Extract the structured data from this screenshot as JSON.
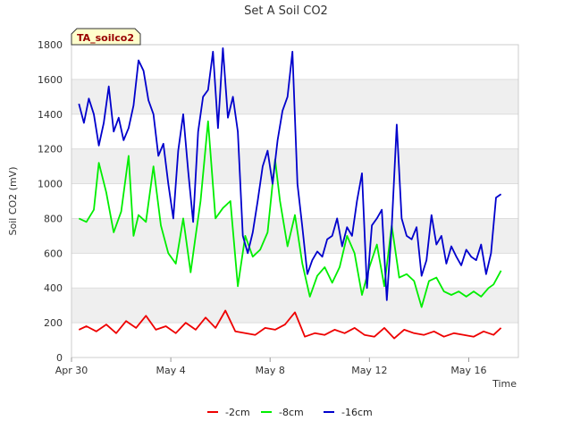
{
  "chart_data": {
    "type": "line",
    "title": "Set A Soil CO2",
    "xlabel": "Time",
    "ylabel": "Soil CO2 (mV)",
    "badge": "TA_soilco2",
    "ylim": [
      0,
      1800
    ],
    "yticks": [
      0,
      200,
      400,
      600,
      800,
      1000,
      1200,
      1400,
      1600,
      1800
    ],
    "xlim": [
      0,
      18
    ],
    "xticks": [
      {
        "value": 0,
        "label": "Apr 30"
      },
      {
        "value": 4,
        "label": "May 4"
      },
      {
        "value": 8,
        "label": "May 8"
      },
      {
        "value": 12,
        "label": "May 12"
      },
      {
        "value": 16,
        "label": "May 16"
      }
    ],
    "colors": {
      "band": "#efefef",
      "grid": "#dddddd",
      "badge_fill": "#ffffcc"
    },
    "series": [
      {
        "name": "-2cm",
        "color": "#ee0000",
        "x": [
          0.3,
          0.6,
          1.0,
          1.4,
          1.8,
          2.2,
          2.6,
          3.0,
          3.4,
          3.8,
          4.2,
          4.6,
          5.0,
          5.4,
          5.8,
          6.2,
          6.6,
          7.0,
          7.4,
          7.8,
          8.2,
          8.6,
          9.0,
          9.4,
          9.8,
          10.2,
          10.6,
          11.0,
          11.4,
          11.8,
          12.2,
          12.6,
          13.0,
          13.4,
          13.8,
          14.2,
          14.6,
          15.0,
          15.4,
          15.8,
          16.2,
          16.6,
          17.0,
          17.3
        ],
        "y": [
          160,
          180,
          150,
          190,
          140,
          210,
          170,
          240,
          160,
          180,
          140,
          200,
          160,
          230,
          170,
          270,
          150,
          140,
          130,
          170,
          160,
          190,
          260,
          120,
          140,
          130,
          160,
          140,
          170,
          130,
          120,
          170,
          110,
          160,
          140,
          130,
          150,
          120,
          140,
          130,
          120,
          150,
          130,
          170
        ]
      },
      {
        "name": "-8cm",
        "color": "#00ee00",
        "x": [
          0.3,
          0.6,
          0.9,
          1.1,
          1.4,
          1.7,
          2.0,
          2.3,
          2.5,
          2.7,
          3.0,
          3.3,
          3.6,
          3.9,
          4.2,
          4.5,
          4.8,
          5.0,
          5.2,
          5.5,
          5.8,
          6.1,
          6.4,
          6.7,
          7.0,
          7.3,
          7.6,
          7.9,
          8.2,
          8.4,
          8.7,
          9.0,
          9.3,
          9.6,
          9.9,
          10.2,
          10.5,
          10.8,
          11.1,
          11.4,
          11.7,
          12.0,
          12.3,
          12.6,
          12.9,
          13.2,
          13.5,
          13.8,
          14.1,
          14.4,
          14.7,
          15.0,
          15.3,
          15.6,
          15.9,
          16.2,
          16.5,
          16.8,
          17.0,
          17.3
        ],
        "y": [
          800,
          780,
          850,
          1120,
          950,
          720,
          840,
          1160,
          700,
          820,
          780,
          1100,
          760,
          600,
          540,
          800,
          490,
          700,
          900,
          1360,
          800,
          860,
          900,
          410,
          700,
          580,
          620,
          720,
          1140,
          900,
          640,
          820,
          540,
          350,
          470,
          520,
          430,
          520,
          700,
          600,
          360,
          520,
          650,
          410,
          760,
          460,
          480,
          440,
          290,
          440,
          460,
          380,
          360,
          380,
          350,
          380,
          350,
          400,
          420,
          500
        ]
      },
      {
        "name": "-16cm",
        "color": "#0000cc",
        "x": [
          0.3,
          0.5,
          0.7,
          0.9,
          1.1,
          1.3,
          1.5,
          1.7,
          1.9,
          2.1,
          2.3,
          2.5,
          2.7,
          2.9,
          3.1,
          3.3,
          3.5,
          3.7,
          3.9,
          4.1,
          4.3,
          4.5,
          4.7,
          4.9,
          5.1,
          5.3,
          5.5,
          5.7,
          5.9,
          6.1,
          6.3,
          6.5,
          6.7,
          6.9,
          7.1,
          7.3,
          7.5,
          7.7,
          7.9,
          8.1,
          8.3,
          8.5,
          8.7,
          8.9,
          9.1,
          9.3,
          9.5,
          9.7,
          9.9,
          10.1,
          10.3,
          10.5,
          10.7,
          10.9,
          11.1,
          11.3,
          11.5,
          11.7,
          11.9,
          12.1,
          12.3,
          12.5,
          12.7,
          12.9,
          13.1,
          13.3,
          13.5,
          13.7,
          13.9,
          14.1,
          14.3,
          14.5,
          14.7,
          14.9,
          15.1,
          15.3,
          15.5,
          15.7,
          15.9,
          16.1,
          16.3,
          16.5,
          16.7,
          16.9,
          17.1,
          17.3
        ],
        "y": [
          1460,
          1350,
          1490,
          1400,
          1220,
          1350,
          1560,
          1300,
          1380,
          1250,
          1320,
          1450,
          1710,
          1650,
          1480,
          1400,
          1160,
          1230,
          1000,
          800,
          1190,
          1400,
          1070,
          780,
          1300,
          1500,
          1540,
          1760,
          1320,
          1780,
          1380,
          1500,
          1300,
          700,
          600,
          720,
          900,
          1100,
          1190,
          1000,
          1250,
          1420,
          1500,
          1760,
          1000,
          750,
          480,
          560,
          610,
          580,
          680,
          700,
          800,
          640,
          750,
          700,
          900,
          1060,
          400,
          760,
          800,
          850,
          330,
          750,
          1340,
          800,
          700,
          680,
          750,
          470,
          560,
          820,
          650,
          700,
          540,
          640,
          580,
          530,
          620,
          580,
          560,
          650,
          480,
          600,
          920,
          940
        ]
      }
    ]
  }
}
